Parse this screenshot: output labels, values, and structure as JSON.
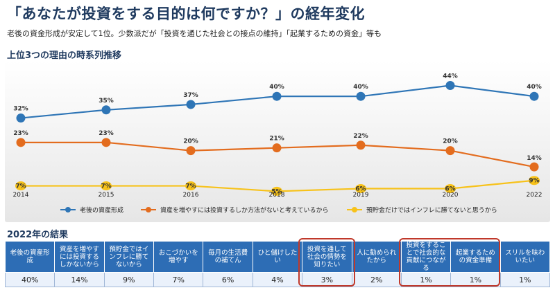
{
  "header": {
    "title": "「あなたが投資をする目的は何ですか？」の経年変化",
    "subtitle": "老後の資金形成が安定して1位。少数派だが「投資を通じた社会との接点の維持」「起業するための資金」等も",
    "section1": "上位3つの理由の時系列推移",
    "section2": "2022年の結果"
  },
  "colors": {
    "blue": "#2e75b6",
    "orange": "#e36c1e",
    "yellow": "#f7c21a"
  },
  "chart_data": {
    "type": "line",
    "x": [
      "2014",
      "2015",
      "2016",
      "2018",
      "2019",
      "2020",
      "2022"
    ],
    "series": [
      {
        "name": "老後の資産形成",
        "values": [
          32,
          35,
          37,
          40,
          40,
          44,
          40
        ],
        "labels": [
          "32%",
          "35%",
          "37%",
          "40%",
          "40%",
          "44%",
          "40%"
        ]
      },
      {
        "name": "資産を増やすには投資するしか方法がないと考えているから",
        "values": [
          23,
          23,
          20,
          21,
          22,
          20,
          14
        ],
        "labels": [
          "23%",
          "23%",
          "20%",
          "21%",
          "22%",
          "20%",
          "14%"
        ]
      },
      {
        "name": "預貯金だけではインフレに勝てないと思うから",
        "values": [
          7,
          7,
          7,
          5,
          6,
          6,
          9
        ],
        "labels": [
          "7%",
          "7%",
          "7%",
          "5%",
          "6%",
          "6%",
          "9%"
        ]
      }
    ],
    "ylim": [
      0,
      50
    ],
    "legend": "bottom"
  },
  "results": {
    "headers": [
      "老後の資産形成",
      "資産を増やすには投資するしかないから",
      "預貯金ではインフレに勝てないから",
      "おこづかいを増やす",
      "毎月の生活費の補てん",
      "ひと儲けしたい",
      "投資を通して社会の情勢を知りたい",
      "人に勧められたから",
      "投資をすることで社会的な貢献につながる",
      "起業するための資金準備",
      "スリルを味わいたい"
    ],
    "values": [
      "40%",
      "14%",
      "9%",
      "7%",
      "6%",
      "4%",
      "3%",
      "2%",
      "1%",
      "1%",
      "1%"
    ]
  }
}
